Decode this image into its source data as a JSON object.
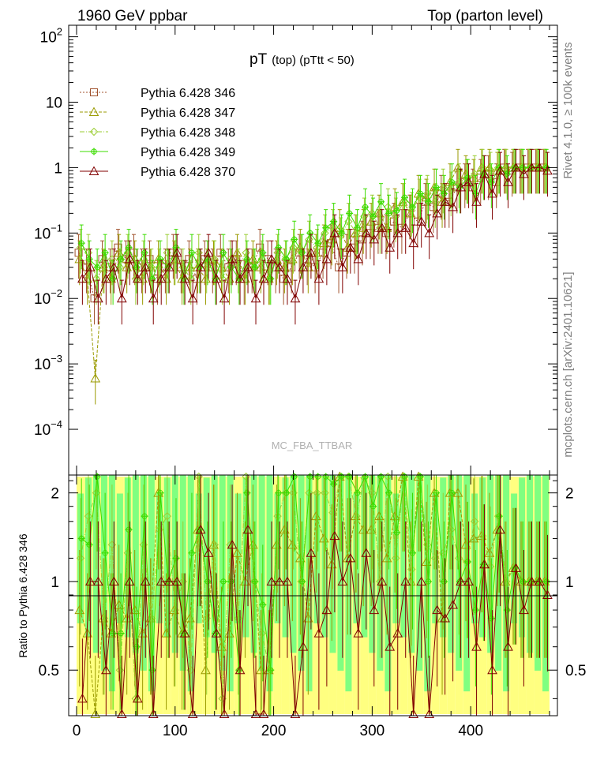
{
  "header": {
    "left": "1960 GeV ppbar",
    "right": "Top (parton level)"
  },
  "side_labels": {
    "rivet": "Rivet 4.1.0, ≥ 100k events",
    "mcplots": "mcplots.cern.ch [arXiv:2401.10621]"
  },
  "watermark": "MC_FBA_TTBAR",
  "colors": {
    "s346": "#a0522d",
    "s347": "#9a9a00",
    "s348": "#9acd32",
    "s349": "#3cdc00",
    "s370": "#800000",
    "band_yellow": "#ffff80",
    "band_green": "#80ff80"
  },
  "chart_data": {
    "type": "line",
    "title_main": "pT",
    "title_sub": "(top) (pTtt < 50)",
    "xlabel": "",
    "ylabel_ratio": "Ratio to Pythia 6.428 346",
    "main_ylim": [
      2e-05,
      150
    ],
    "main_yscale": "log",
    "ratio_ylim": [
      0.35,
      2.3
    ],
    "ratio_yscale": "log",
    "xlim": [
      -8,
      488
    ],
    "x_ticks": [
      0,
      100,
      200,
      300,
      400
    ],
    "main_y_ticks": [
      {
        "base": "10",
        "exp": "2",
        "value": 100
      },
      {
        "base": "10",
        "exp": "",
        "value": 10
      },
      {
        "base": "1",
        "exp": "",
        "value": 1
      },
      {
        "base": "10",
        "exp": "−1",
        "value": 0.1
      },
      {
        "base": "10",
        "exp": "−2",
        "value": 0.01
      },
      {
        "base": "10",
        "exp": "−3",
        "value": 0.001
      },
      {
        "base": "10",
        "exp": "−4",
        "value": 0.0001
      }
    ],
    "ratio_y_ticks": [
      {
        "label": "2",
        "value": 2
      },
      {
        "label": "1",
        "value": 1
      },
      {
        "label": "0.5",
        "value": 0.5
      }
    ],
    "x": [
      4,
      12,
      20,
      28,
      36,
      44,
      52,
      60,
      68,
      76,
      84,
      92,
      100,
      108,
      116,
      124,
      132,
      140,
      148,
      156,
      164,
      172,
      180,
      188,
      196,
      204,
      212,
      220,
      228,
      236,
      244,
      252,
      260,
      268,
      276,
      284,
      292,
      300,
      308,
      316,
      324,
      332,
      340,
      348,
      356,
      364,
      372,
      380,
      388,
      396,
      404,
      412,
      420,
      428,
      436,
      444,
      452,
      460,
      468,
      476
    ],
    "series": [
      {
        "name": "Pythia 6.428 346",
        "key": "s346",
        "marker": "square",
        "dash": "2,2",
        "values": [
          0.05,
          0.03,
          0.01,
          0.04,
          0.03,
          0.06,
          0.04,
          0.05,
          0.03,
          0.04,
          0.02,
          0.03,
          0.05,
          0.03,
          0.04,
          0.02,
          0.04,
          0.03,
          0.05,
          0.03,
          0.04,
          0.02,
          0.03,
          0.06,
          0.04,
          0.03,
          0.02,
          0.03,
          0.05,
          0.04,
          0.03,
          0.05,
          0.07,
          0.03,
          0.05,
          0.06,
          0.08,
          0.1,
          0.12,
          0.1,
          0.15,
          0.12,
          0.2,
          0.15,
          0.3,
          0.25,
          0.4,
          0.3,
          0.5,
          0.6,
          0.5,
          0.7,
          0.8,
          0.6,
          1,
          0.9,
          1,
          1,
          1,
          1
        ]
      },
      {
        "name": "Pythia 6.428 347",
        "key": "s347",
        "marker": "triangle",
        "dash": "4,2",
        "values": [
          0.04,
          0.02,
          0.0006,
          0.03,
          0.02,
          0.05,
          0.03,
          0.04,
          0.02,
          0.03,
          0.04,
          0.02,
          0.04,
          0.02,
          0.03,
          0.03,
          0.02,
          0.04,
          0.03,
          0.02,
          0.05,
          0.02,
          0.04,
          0.03,
          0.02,
          0.04,
          0.03,
          0.04,
          0.06,
          0.03,
          0.05,
          0.07,
          0.08,
          0.12,
          0.06,
          0.1,
          0.12,
          0.15,
          0.2,
          0.12,
          0.25,
          0.3,
          0.2,
          0.4,
          0.35,
          0.5,
          0.3,
          0.6,
          1.0,
          0.8,
          0.7,
          1,
          1,
          0.9,
          1,
          1,
          1,
          1,
          1,
          1
        ]
      },
      {
        "name": "Pythia 6.428 348",
        "key": "s348",
        "marker": "diamond",
        "dash": "6,2,1,2",
        "values": [
          0.06,
          0.05,
          0.02,
          0.03,
          0.04,
          0.03,
          0.05,
          0.02,
          0.04,
          0.03,
          0.03,
          0.05,
          0.04,
          0.03,
          0.02,
          0.05,
          0.03,
          0.04,
          0.02,
          0.04,
          0.03,
          0.05,
          0.03,
          0.04,
          0.02,
          0.05,
          0.04,
          0.06,
          0.05,
          0.08,
          0.06,
          0.1,
          0.12,
          0.09,
          0.15,
          0.1,
          0.18,
          0.2,
          0.12,
          0.25,
          0.18,
          0.3,
          0.22,
          0.35,
          0.4,
          0.3,
          0.5,
          0.45,
          0.6,
          0.7,
          0.8,
          1,
          0.9,
          1,
          1,
          1,
          1,
          1,
          1,
          1
        ]
      },
      {
        "name": "Pythia 6.428 349",
        "key": "s349",
        "marker": "cross",
        "dash": "",
        "values": [
          0.07,
          0.04,
          0.03,
          0.05,
          0.02,
          0.04,
          0.06,
          0.03,
          0.05,
          0.02,
          0.04,
          0.03,
          0.06,
          0.02,
          0.05,
          0.03,
          0.04,
          0.02,
          0.05,
          0.03,
          0.02,
          0.04,
          0.03,
          0.05,
          0.02,
          0.06,
          0.04,
          0.08,
          0.05,
          0.1,
          0.07,
          0.12,
          0.15,
          0.1,
          0.2,
          0.12,
          0.25,
          0.18,
          0.3,
          0.2,
          0.22,
          0.35,
          0.25,
          0.4,
          0.3,
          0.5,
          0.4,
          0.6,
          0.5,
          0.7,
          0.4,
          0.8,
          0.6,
          1,
          0.8,
          1,
          1,
          1,
          1,
          1
        ]
      },
      {
        "name": "Pythia 6.428 370",
        "key": "s370",
        "marker": "triangle",
        "dash": "",
        "values": [
          0.02,
          0.03,
          0.01,
          0.02,
          0.03,
          0.01,
          0.04,
          0.02,
          0.03,
          0.01,
          0.02,
          0.03,
          0.05,
          0.02,
          0.01,
          0.03,
          0.05,
          0.02,
          0.01,
          0.04,
          0.02,
          0.03,
          0.01,
          0.02,
          0.04,
          0.03,
          0.02,
          0.01,
          0.03,
          0.05,
          0.02,
          0.04,
          0.1,
          0.03,
          0.06,
          0.04,
          0.1,
          0.08,
          0.12,
          0.06,
          0.1,
          0.12,
          0.07,
          0.15,
          0.1,
          0.2,
          0.3,
          0.25,
          0.5,
          0.6,
          0.3,
          0.8,
          0.4,
          0.9,
          0.6,
          1,
          0.8,
          1,
          1,
          0.9
        ]
      }
    ]
  }
}
